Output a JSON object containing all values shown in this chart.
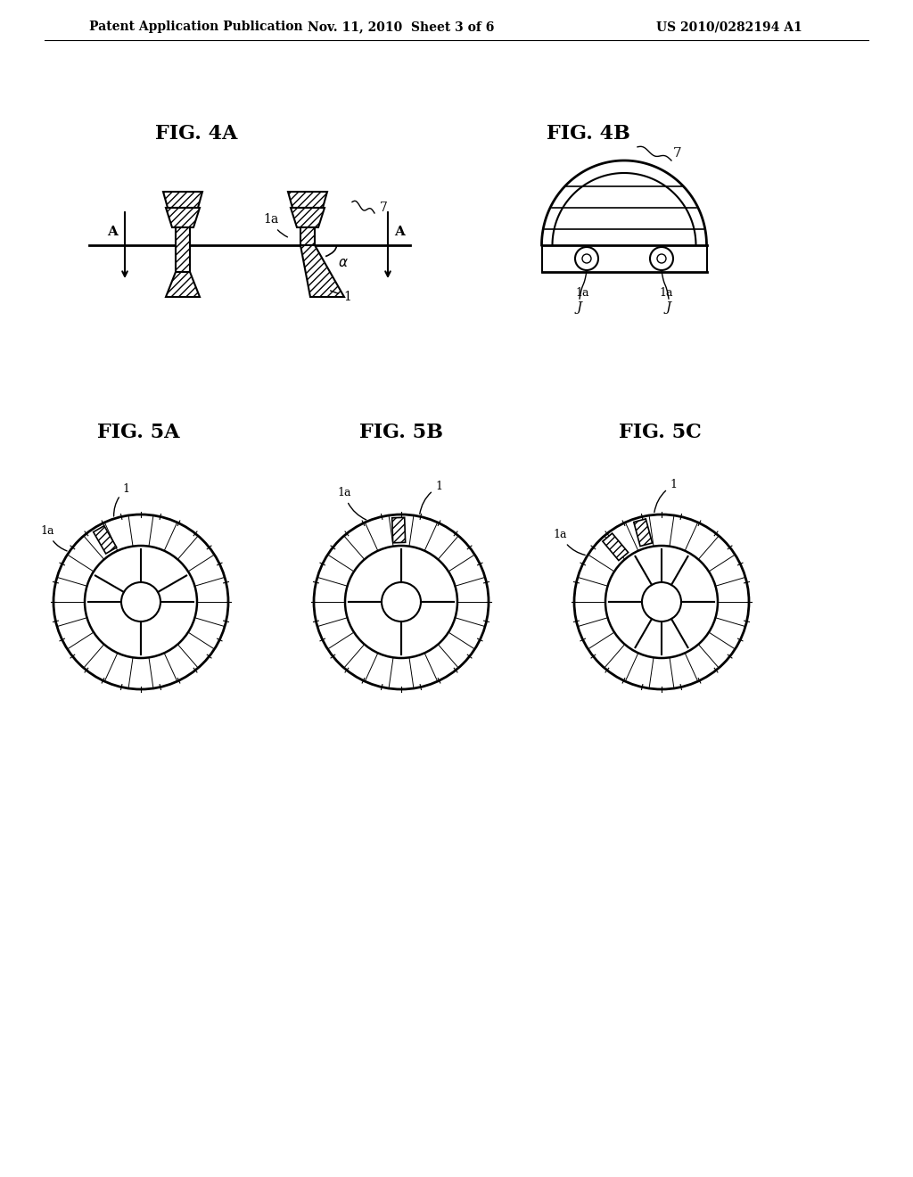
{
  "bg_color": "#ffffff",
  "header_left": "Patent Application Publication",
  "header_mid": "Nov. 11, 2010  Sheet 3 of 6",
  "header_right": "US 2010/0282194 A1",
  "fig4a_label": "FIG. 4A",
  "fig4b_label": "FIG. 4B",
  "fig5a_label": "FIG. 5A",
  "fig5b_label": "FIG. 5B",
  "fig5c_label": "FIG. 5C",
  "line_color": "#000000",
  "hatch_color": "#000000",
  "hatch_pattern": "////"
}
